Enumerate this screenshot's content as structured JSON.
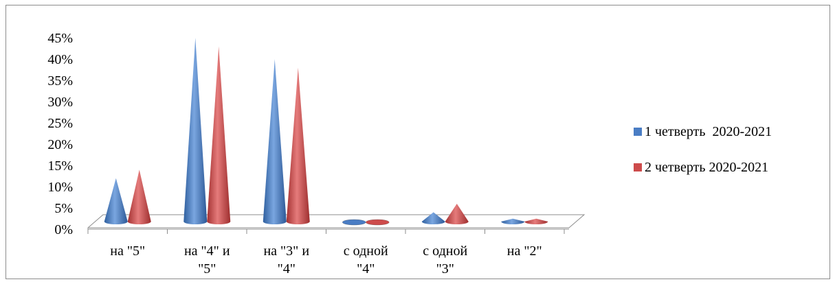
{
  "chart_data": {
    "type": "bar",
    "shape": "cone",
    "categories": [
      [
        "на \"5\""
      ],
      [
        "на \"4\" и",
        "\"5\""
      ],
      [
        "на \"3\" и",
        "\"4\""
      ],
      [
        "с одной",
        "\"4\""
      ],
      [
        "с одной",
        "\"3\""
      ],
      [
        "на \"2\""
      ]
    ],
    "series": [
      {
        "name": "1 четверть  2020-2021",
        "color": "#4a7dc4",
        "values": [
          11,
          44,
          39,
          0,
          3,
          1.5
        ]
      },
      {
        "name": "2 четверть 2020-2021",
        "color": "#cd4b4b",
        "values": [
          13,
          42,
          37,
          0,
          5,
          1.5
        ]
      }
    ],
    "ylim": [
      0,
      45
    ],
    "yticks": [
      "0%",
      "5%",
      "10%",
      "15%",
      "20%",
      "25%",
      "30%",
      "35%",
      "40%",
      "45%"
    ],
    "grid": false,
    "legend_position": "right"
  }
}
